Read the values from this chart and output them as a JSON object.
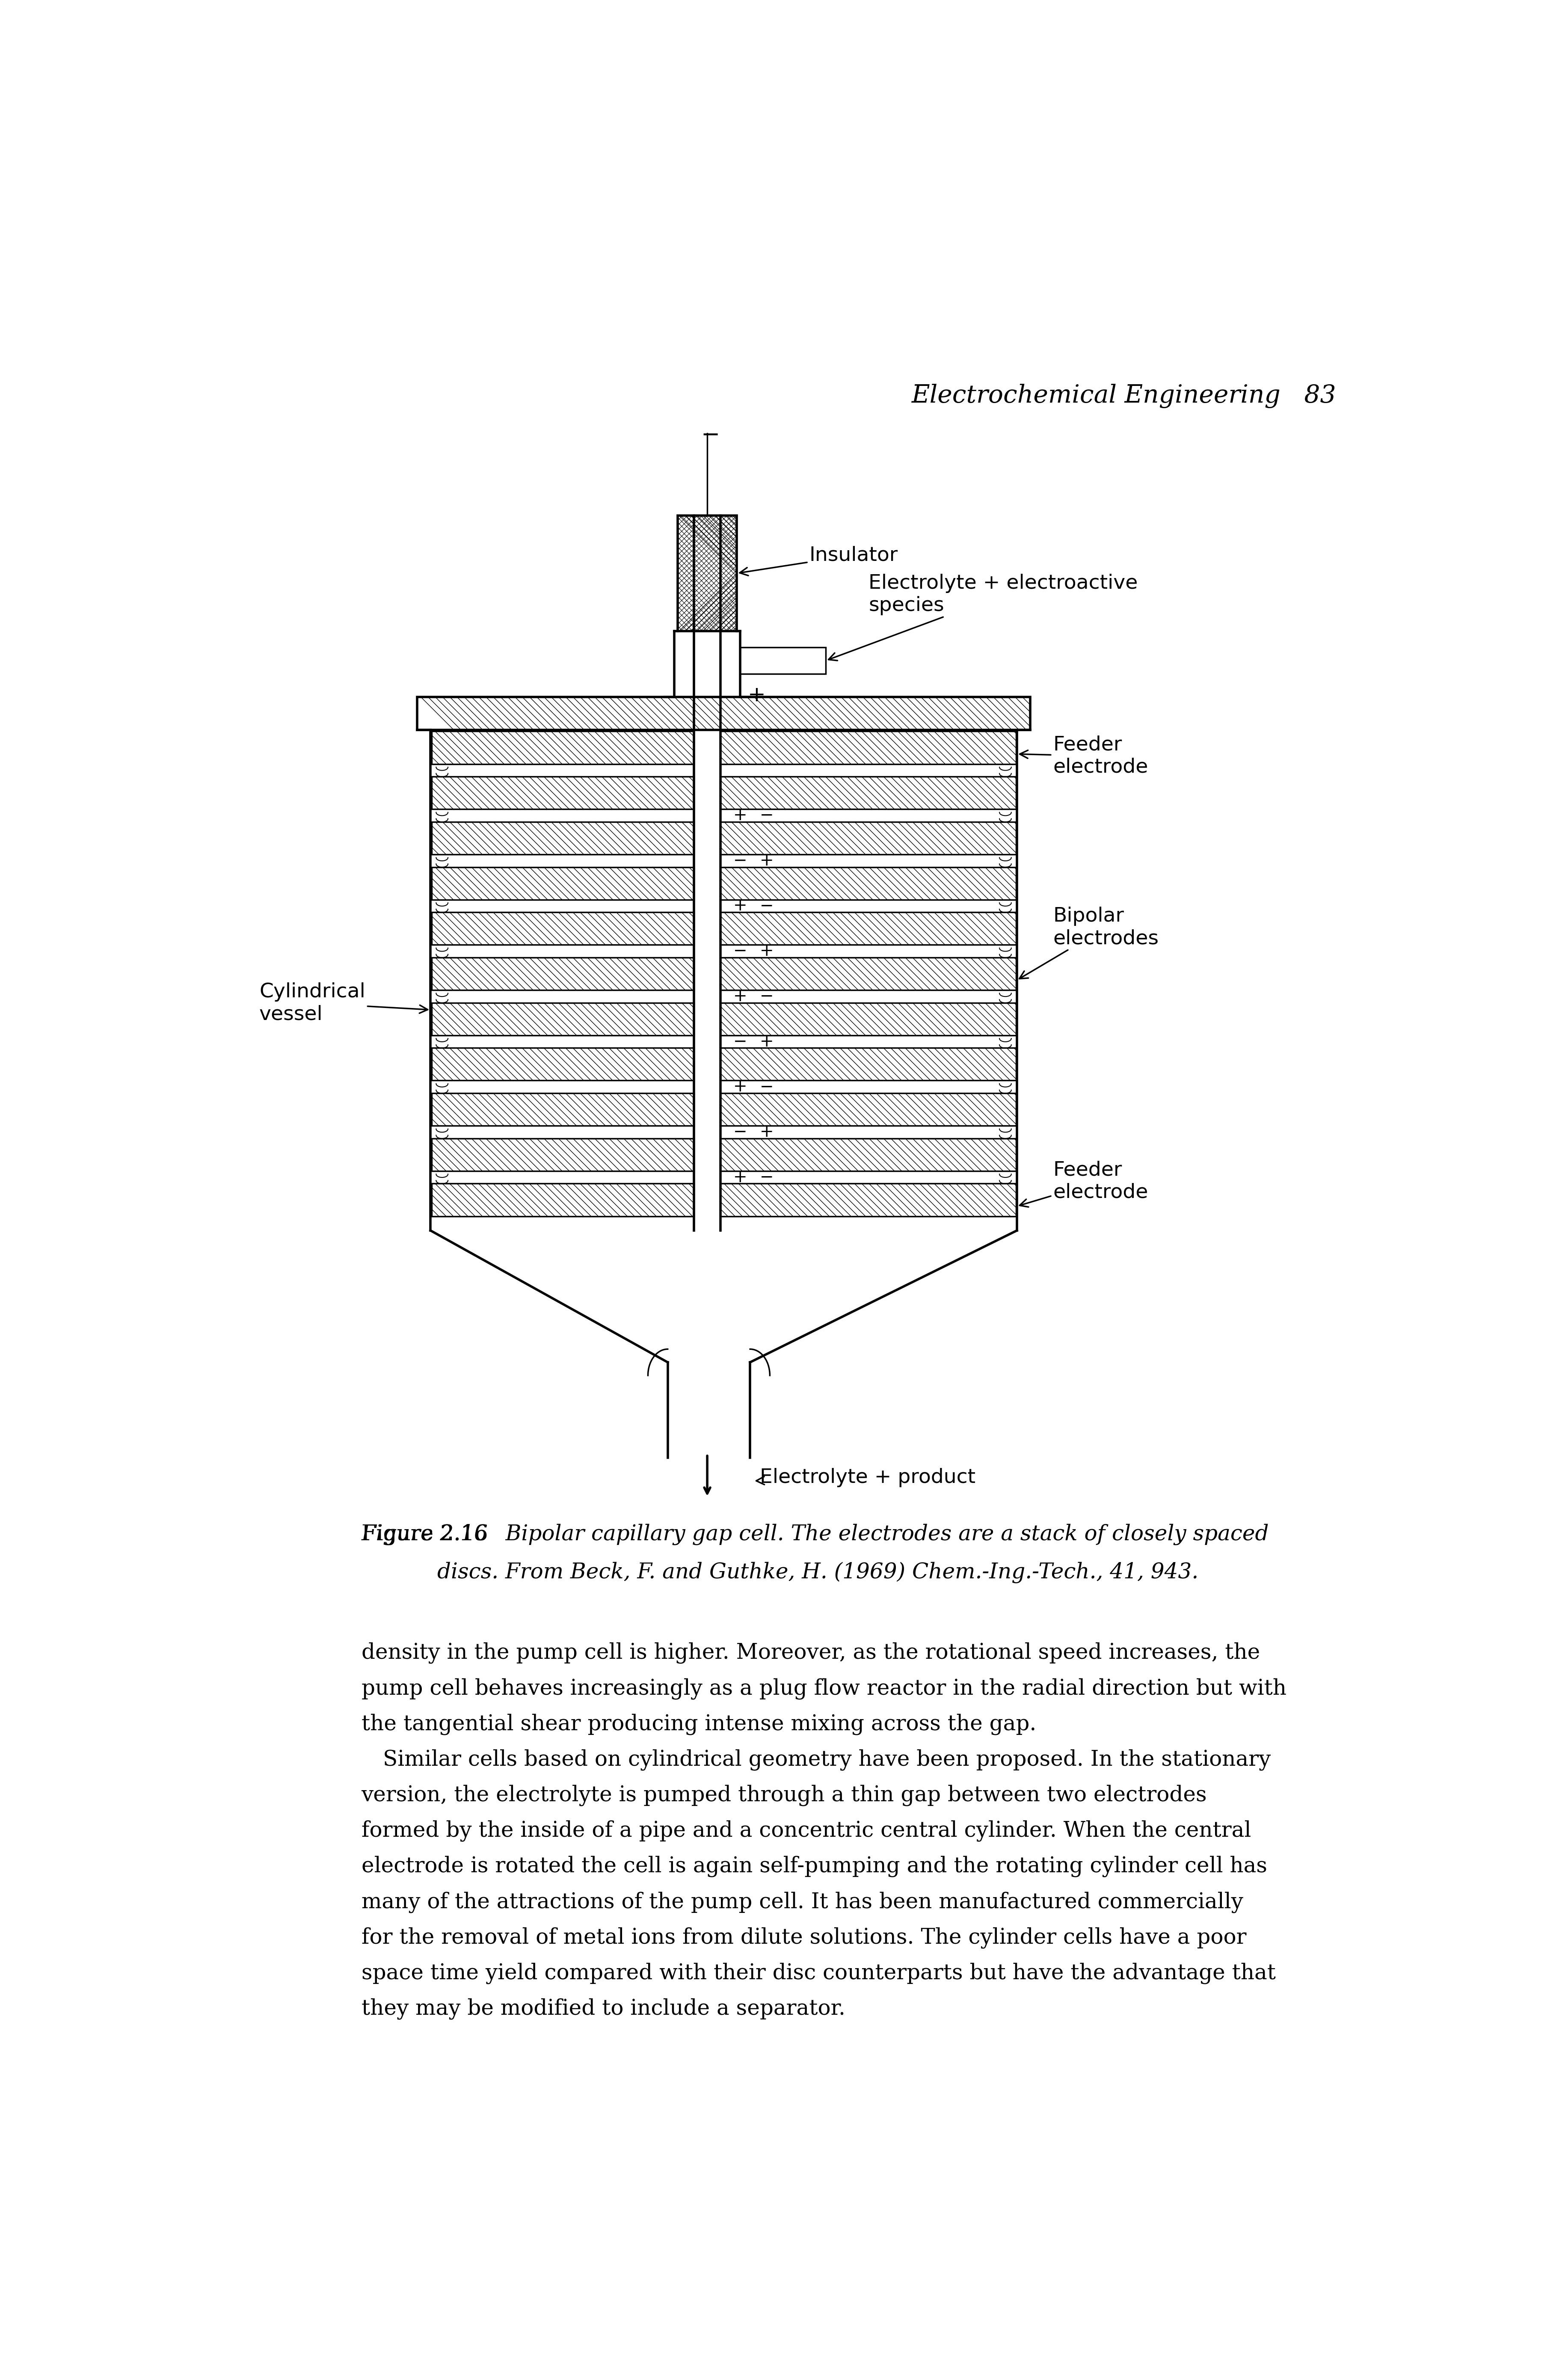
{
  "page_header": "Electrochemical Engineering   83",
  "figure_caption_bold": "Figure 2.16",
  "figure_caption_italic1": " Bipolar capillary gap cell. The electrodes are a stack of closely spaced",
  "figure_caption_line2_italic": "discs. From Beck, F. and Guthke, H. (1969) ",
  "figure_caption_line2_normal": "Chem.-Ing.-Tech., ",
  "figure_caption_line2_bold": "41",
  "figure_caption_line2_end": ", 943.",
  "body_text": [
    "density in the pump cell is higher. Moreover, as the rotational speed increases, the",
    "pump cell behaves increasingly as a plug flow reactor in the radial direction but with",
    "the tangential shear producing intense mixing across the gap.",
    " Similar cells based on cylindrical geometry have been proposed. In the stationary",
    "version, the electrolyte is pumped through a thin gap between two electrodes",
    "formed by the inside of a pipe and a concentric central cylinder. When the central",
    "electrode is rotated the cell is again self-pumping and the rotating cylinder cell has",
    "many of the attractions of the pump cell. It has been manufactured commercially",
    "for the removal of metal ions from dilute solutions. The cylinder cells have a poor",
    "space time yield compared with their disc counterparts but have the advantage that",
    "they may be modified to include a separator."
  ],
  "background_color": "#ffffff",
  "line_color": "#000000",
  "font_size_header": 42,
  "font_size_caption": 36,
  "font_size_label": 34,
  "font_size_body": 36,
  "font_size_pm": 28
}
